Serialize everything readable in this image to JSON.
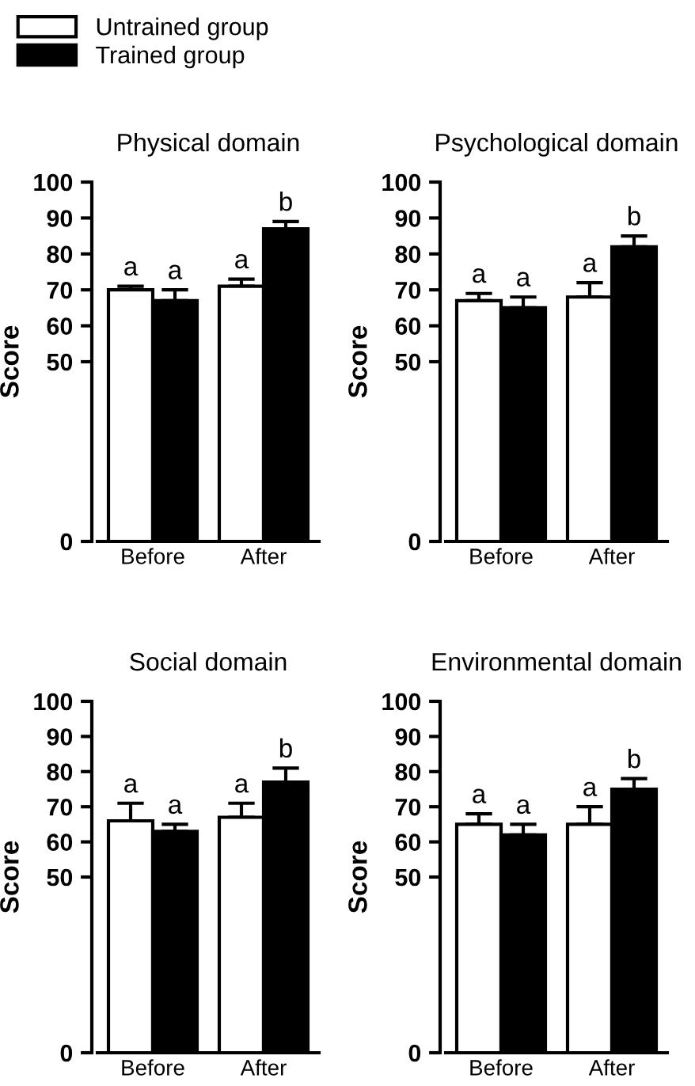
{
  "chart_data": [
    {
      "type": "bar",
      "title": "Physical domain",
      "ylabel": "Score",
      "categories": [
        "Before",
        "After"
      ],
      "ylim": [
        0,
        100
      ],
      "yticks": [
        0,
        50,
        60,
        70,
        80,
        90,
        100
      ],
      "legend": "top left",
      "grid": false,
      "series": [
        {
          "name": "Untrained group",
          "color": "#ffffff",
          "values": [
            70,
            71
          ],
          "errors": [
            [
              70,
              71
            ],
            [
              71,
              73
            ]
          ],
          "value_labels": [
            "a",
            "a"
          ]
        },
        {
          "name": "Trained group",
          "color": "#000000",
          "values": [
            67,
            87
          ],
          "errors": [
            [
              67,
              70
            ],
            [
              87,
              89
            ]
          ],
          "value_labels": [
            "a",
            "b"
          ]
        }
      ]
    },
    {
      "type": "bar",
      "title": "Psychological domain",
      "ylabel": "Score",
      "categories": [
        "Before",
        "After"
      ],
      "ylim": [
        0,
        100
      ],
      "yticks": [
        0,
        50,
        60,
        70,
        80,
        90,
        100
      ],
      "grid": false,
      "series": [
        {
          "color": "#ffffff",
          "values": [
            67,
            68
          ],
          "errors": [
            [
              67,
              69
            ],
            [
              68,
              72
            ]
          ],
          "value_labels": [
            "a",
            "a"
          ]
        },
        {
          "color": "#000000",
          "values": [
            65,
            82
          ],
          "errors": [
            [
              65,
              68
            ],
            [
              82,
              85
            ]
          ],
          "value_labels": [
            "a",
            "b"
          ]
        }
      ]
    },
    {
      "type": "bar",
      "title": "Social domain",
      "ylabel": "Score",
      "categories": [
        "Before",
        "After"
      ],
      "ylim": [
        0,
        100
      ],
      "yticks": [
        0,
        50,
        60,
        70,
        80,
        90,
        100
      ],
      "grid": false,
      "series": [
        {
          "color": "#ffffff",
          "values": [
            66,
            67
          ],
          "errors": [
            [
              66,
              71
            ],
            [
              67,
              71
            ]
          ],
          "value_labels": [
            "a",
            "a"
          ]
        },
        {
          "color": "#000000",
          "values": [
            63,
            77
          ],
          "errors": [
            [
              63,
              65
            ],
            [
              77,
              81
            ]
          ],
          "value_labels": [
            "a",
            "b"
          ]
        }
      ]
    },
    {
      "type": "bar",
      "title": "Environmental domain",
      "ylabel": "Score",
      "categories": [
        "Before",
        "After"
      ],
      "ylim": [
        0,
        100
      ],
      "yticks": [
        0,
        50,
        60,
        70,
        80,
        90,
        100
      ],
      "grid": false,
      "series": [
        {
          "color": "#ffffff",
          "values": [
            65,
            65
          ],
          "errors": [
            [
              65,
              68
            ],
            [
              65,
              70
            ]
          ],
          "value_labels": [
            "a",
            "a"
          ]
        },
        {
          "color": "#000000",
          "values": [
            62,
            75
          ],
          "errors": [
            [
              62,
              65
            ],
            [
              75,
              78
            ]
          ],
          "value_labels": [
            "a",
            "b"
          ]
        }
      ]
    }
  ]
}
